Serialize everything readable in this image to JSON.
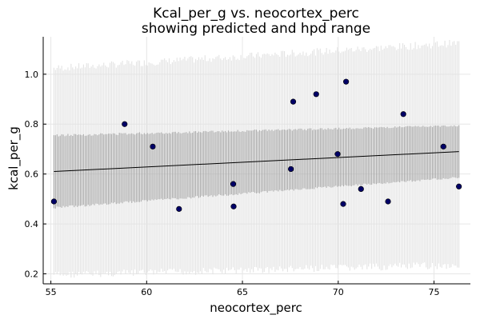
{
  "chart_data": {
    "type": "scatter",
    "title": [
      "Kcal_per_g vs. neocortex_perc",
      "showing predicted and hpd range"
    ],
    "xlabel": "neocortex_perc",
    "ylabel": "kcal_per_g",
    "xlim": [
      54.6,
      76.9
    ],
    "ylim": [
      0.16,
      1.15
    ],
    "xticks": [
      55,
      60,
      65,
      70,
      75
    ],
    "yticks": [
      0.2,
      0.4,
      0.6,
      0.8,
      1.0
    ],
    "xtick_labels": [
      "55",
      "60",
      "65",
      "70",
      "75"
    ],
    "ytick_labels": [
      "0.2",
      "0.4",
      "0.6",
      "0.8",
      "1.0"
    ],
    "grid": true,
    "legend": "none",
    "series": [
      {
        "type": "scatter",
        "x": [
          55.16,
          58.85,
          60.32,
          61.69,
          64.52,
          64.54,
          67.53,
          67.65,
          68.85,
          69.97,
          70.26,
          70.41,
          71.19,
          72.6,
          73.4,
          75.49,
          76.3
        ],
        "y": [
          0.49,
          0.8,
          0.71,
          0.46,
          0.56,
          0.47,
          0.62,
          0.89,
          0.92,
          0.68,
          0.48,
          0.97,
          0.54,
          0.49,
          0.84,
          0.71,
          0.55
        ]
      },
      {
        "type": "line",
        "x": [
          55.16,
          76.3
        ],
        "y": [
          0.61,
          0.69
        ]
      },
      {
        "type": "band",
        "x": [
          55.16,
          76.3
        ],
        "lower": [
          0.47,
          0.59
        ],
        "upper": [
          0.75,
          0.79
        ]
      },
      {
        "type": "band",
        "x": [
          55.16,
          76.3
        ],
        "lower": [
          0.21,
          0.25
        ],
        "upper": [
          1.01,
          1.11
        ]
      }
    ],
    "colors": {
      "points": "#000066",
      "mean_line": "#000000",
      "hpd_band": "#a6a6a6",
      "pred_band": "#e3e3e3",
      "grid": "#e6e6e6",
      "axis": "#000000"
    }
  }
}
